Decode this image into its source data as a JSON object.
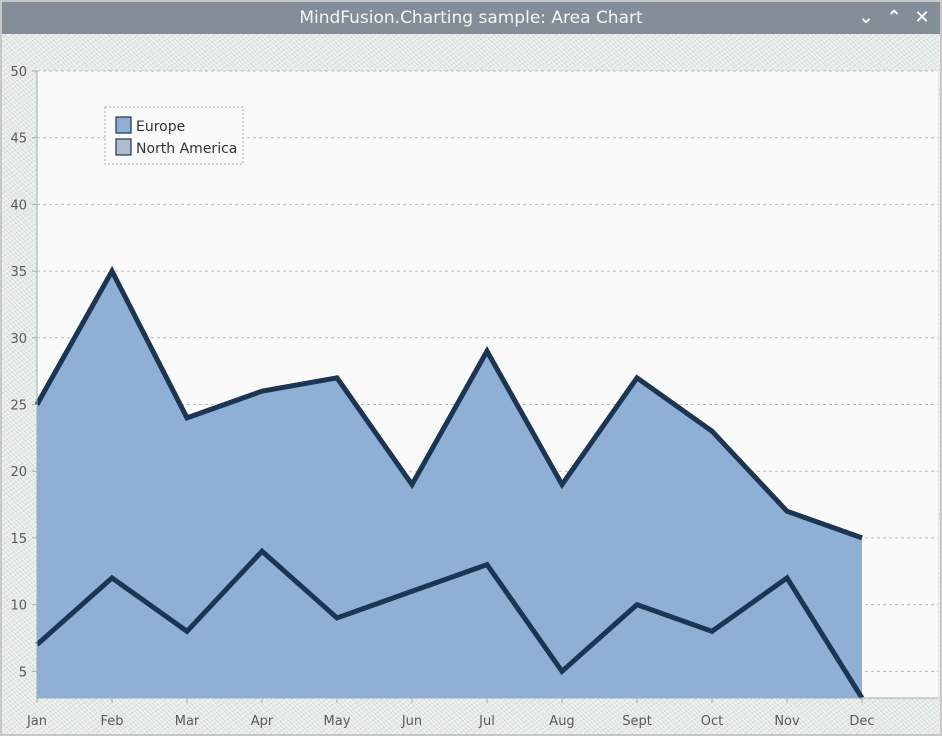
{
  "window": {
    "title": "MindFusion.Charting sample: Area Chart",
    "buttons": {
      "minimize": "minimize-icon",
      "maximize": "maximize-icon",
      "close": "close-icon"
    }
  },
  "chart_data": {
    "type": "area",
    "title": "",
    "xlabel": "",
    "ylabel": "",
    "categories": [
      "Jan",
      "Feb",
      "Mar",
      "Apr",
      "May",
      "Jun",
      "Jul",
      "Aug",
      "Sept",
      "Oct",
      "Nov",
      "Dec"
    ],
    "series": [
      {
        "name": "Europe",
        "values": [
          25,
          35,
          24,
          26,
          27,
          19,
          29,
          19,
          27,
          23,
          17,
          15
        ],
        "fill": "#8fb0d4",
        "line": "#1b3554"
      },
      {
        "name": "North America",
        "values": [
          7,
          12,
          8,
          14,
          9,
          11,
          13,
          5,
          10,
          8,
          12,
          3
        ],
        "fill": "#b0bccd",
        "line": "#1b3554"
      }
    ],
    "ylim": [
      3,
      50
    ],
    "yticks": [
      5,
      10,
      15,
      20,
      25,
      30,
      35,
      40,
      45,
      50
    ],
    "grid": true,
    "legend_position": "top-left"
  }
}
